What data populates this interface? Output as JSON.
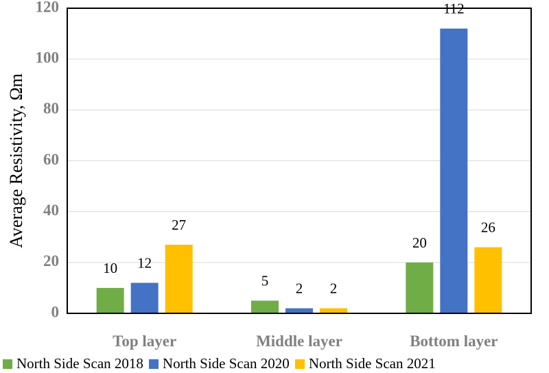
{
  "chart_data": {
    "type": "bar",
    "categories": [
      "Top layer",
      "Middle layer",
      "Bottom layer"
    ],
    "series": [
      {
        "name": "North Side Scan 2018",
        "values": [
          10,
          5,
          20
        ],
        "labels": [
          "10",
          "5",
          "20"
        ],
        "color": "#70AD47"
      },
      {
        "name": "North Side Scan 2020",
        "values": [
          12,
          2,
          112
        ],
        "labels": [
          "12",
          "2",
          "112"
        ],
        "color": "#4472C4"
      },
      {
        "name": "North Side Scan 2021",
        "values": [
          27,
          2,
          26
        ],
        "labels": [
          "27",
          "2",
          "26"
        ],
        "color": "#FFC000"
      }
    ],
    "title": "",
    "xlabel": "",
    "ylabel": "Average Resistivity, Ωm",
    "ylim": [
      0,
      120
    ],
    "yticks": [
      "0",
      "20",
      "40",
      "60",
      "80",
      "100",
      "120"
    ],
    "grid": true,
    "legend_position": "bottom"
  }
}
